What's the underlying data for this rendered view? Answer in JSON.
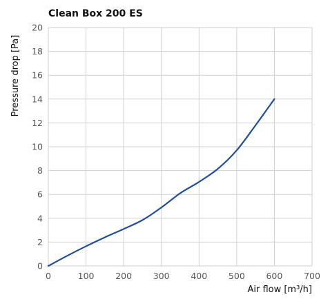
{
  "chart_data": {
    "type": "line",
    "title": "Clean Box 200 ES",
    "xlabel": "Air flow [m³/h]",
    "ylabel": "Pressure drop [Pa]",
    "xlim": [
      0,
      700
    ],
    "ylim": [
      0,
      20
    ],
    "xticks": [
      "0",
      "100",
      "200",
      "300",
      "400",
      "500",
      "600",
      "700"
    ],
    "yticks": [
      "0",
      "2",
      "4",
      "6",
      "8",
      "10",
      "12",
      "14",
      "16",
      "18",
      "20"
    ],
    "grid": true,
    "series": [
      {
        "x": [
          0,
          50,
          100,
          150,
          200,
          250,
          300,
          350,
          400,
          450,
          500,
          550,
          600
        ],
        "y": [
          0,
          0.85,
          1.65,
          2.4,
          3.1,
          3.85,
          4.9,
          6.1,
          7.05,
          8.15,
          9.7,
          11.8,
          14.0
        ]
      }
    ],
    "line_color": "#1f4e9a",
    "grid_color": "#d0d0d0"
  }
}
